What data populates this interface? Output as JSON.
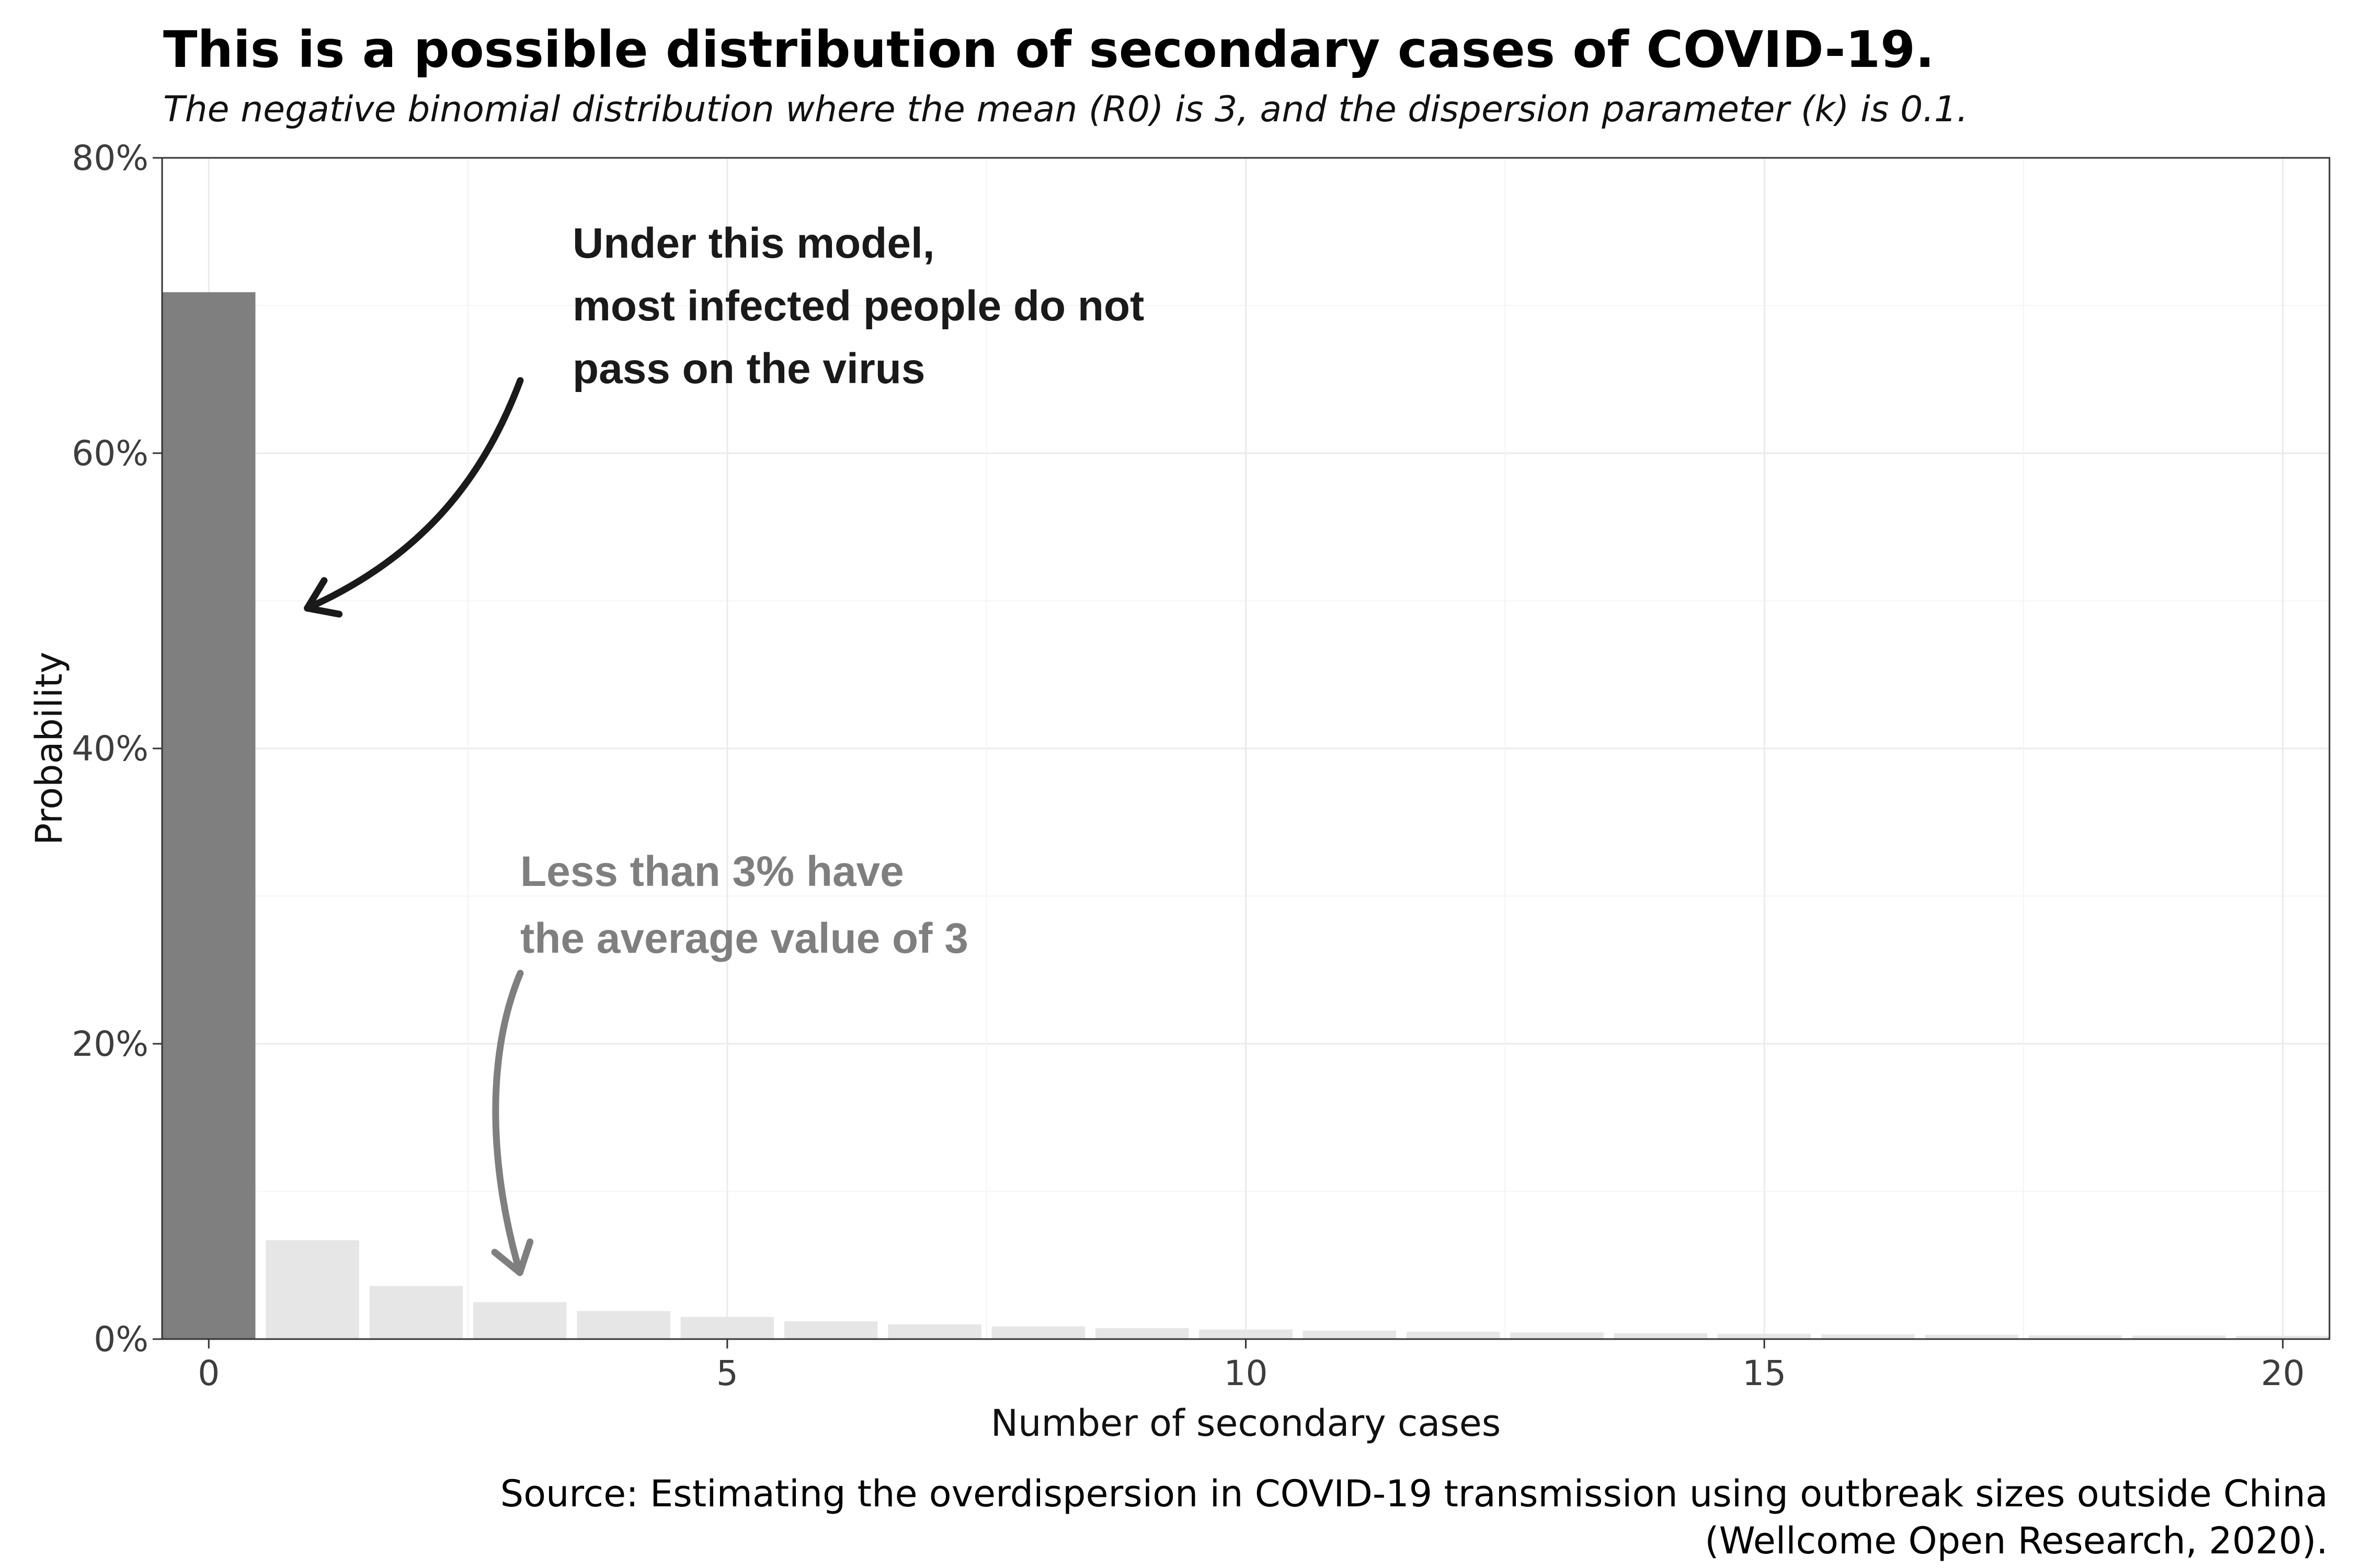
{
  "chart_data": {
    "type": "bar",
    "title": "This is a possible distribution of secondary cases of COVID-19.",
    "subtitle": "The negative binomial distribution where the mean (R0) is 3, and the dispersion parameter (k) is 0.1.",
    "xlabel": "Number of secondary cases",
    "ylabel": "Probability",
    "caption_lines": [
      "Source: Estimating the overdispersion in COVID-19 transmission using outbreak sizes outside China",
      "(Wellcome Open Research, 2020)."
    ],
    "categories": [
      0,
      1,
      2,
      3,
      4,
      5,
      6,
      7,
      8,
      9,
      10,
      11,
      12,
      13,
      14,
      15,
      16,
      17,
      18,
      19,
      20
    ],
    "values": [
      70.9,
      6.7,
      3.6,
      2.5,
      1.9,
      1.5,
      1.2,
      1.0,
      0.86,
      0.74,
      0.65,
      0.57,
      0.5,
      0.45,
      0.4,
      0.36,
      0.32,
      0.29,
      0.26,
      0.24,
      0.22
    ],
    "highlight_index": 0,
    "highlight_color": "#7f7f7f",
    "bar_color": "#e6e6e6",
    "xlim": [
      -0.45,
      20.45
    ],
    "ylim": [
      0,
      80
    ],
    "x_ticks": [
      0,
      5,
      10,
      15,
      20
    ],
    "x_tick_labels": [
      "0",
      "5",
      "10",
      "15",
      "20"
    ],
    "y_ticks": [
      0,
      20,
      40,
      60,
      80
    ],
    "y_tick_labels": [
      "0%",
      "20%",
      "40%",
      "60%",
      "80%"
    ],
    "grid": true,
    "annotations": [
      {
        "lines": [
          "Under this model,",
          "most infected people do not",
          "pass on the virus"
        ],
        "color": "#1a1a1a",
        "points_to": {
          "x": 0.95,
          "y": 49.5
        }
      },
      {
        "lines": [
          "Less than 3% have",
          "the average value of 3"
        ],
        "color": "#7f7f7f",
        "points_to": {
          "x": 3.0,
          "y": 4.5
        }
      }
    ]
  }
}
